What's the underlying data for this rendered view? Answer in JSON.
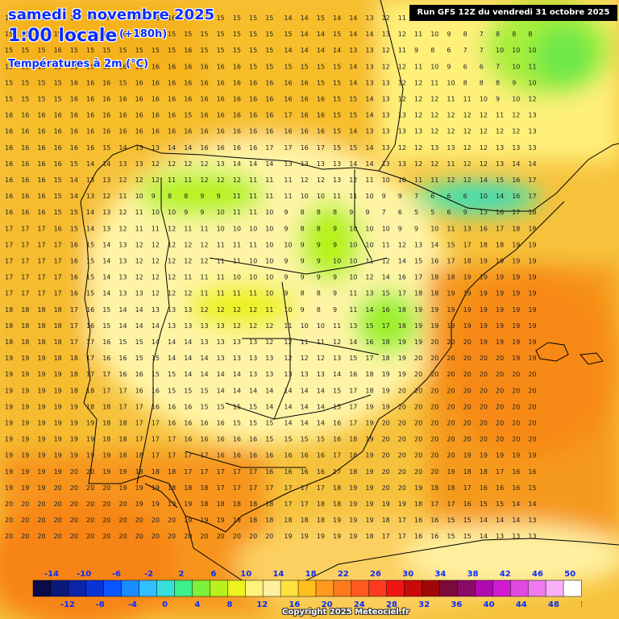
{
  "title": {
    "date": "samedi 8 novembre 2025",
    "time": "1:00 locale",
    "offset": "(+180h)",
    "parameter": "Températures à 2m (°C)"
  },
  "run_banner": "Run GFS 12Z du vendredi 31 octobre 2025",
  "copyright": "Copyright 2025 Meteociel.fr",
  "legend": {
    "top_labels": [
      "-14",
      "-10",
      "-6",
      "-2",
      "2",
      "6",
      "10",
      "14",
      "18",
      "22",
      "26",
      "30",
      "34",
      "38",
      "42",
      "46",
      "50"
    ],
    "bottom_labels": [
      "-12",
      "-8",
      "-4",
      "0",
      "4",
      "8",
      "12",
      "16",
      "20",
      "24",
      "28",
      "32",
      "36",
      "40",
      "44",
      "48",
      "52"
    ],
    "colors": [
      "#0b0b4a",
      "#0a1a7a",
      "#0b25a8",
      "#0a34d8",
      "#0a55ff",
      "#1a8cff",
      "#2fc0ff",
      "#37e0d8",
      "#3cf08a",
      "#7cf23a",
      "#b8f21e",
      "#eef21e",
      "#fff27a",
      "#fff0a0",
      "#ffe040",
      "#ffbf1f",
      "#ff9a1f",
      "#ff7a1f",
      "#ff5a1f",
      "#ff3a1f",
      "#f01414",
      "#c80a0a",
      "#a00808",
      "#7a0a3a",
      "#8a0a6a",
      "#b00ab0",
      "#d01ad0",
      "#e04ae0",
      "#f07af0",
      "#f8b0f8",
      "#ffffff"
    ]
  },
  "temperature_rows": [
    [
      "16",
      "16",
      "16",
      "16",
      "16",
      "16",
      "16",
      "15",
      "16",
      "16",
      "16",
      "16",
      "16",
      "15",
      "15",
      "15",
      "15",
      "14",
      "14",
      "15",
      "14",
      "14",
      "13",
      "12",
      "11",
      "11",
      "10",
      "9",
      "7",
      "7",
      "8",
      "8",
      "8"
    ],
    [
      "15",
      "15",
      "15",
      "15",
      "15",
      "15",
      "15",
      "16",
      "15",
      "15",
      "15",
      "15",
      "15",
      "15",
      "15",
      "15",
      "15",
      "15",
      "14",
      "14",
      "15",
      "14",
      "14",
      "13",
      "12",
      "11",
      "10",
      "9",
      "8",
      "7",
      "8",
      "8",
      "8"
    ],
    [
      "15",
      "15",
      "15",
      "16",
      "15",
      "15",
      "15",
      "15",
      "15",
      "15",
      "15",
      "16",
      "15",
      "15",
      "15",
      "15",
      "15",
      "14",
      "14",
      "14",
      "14",
      "13",
      "13",
      "12",
      "11",
      "9",
      "8",
      "6",
      "7",
      "7",
      "10",
      "10",
      "10"
    ],
    [
      "15",
      "15",
      "15",
      "15",
      "15",
      "15",
      "15",
      "16",
      "16",
      "16",
      "16",
      "16",
      "16",
      "16",
      "16",
      "15",
      "15",
      "15",
      "15",
      "15",
      "15",
      "14",
      "13",
      "12",
      "12",
      "11",
      "10",
      "9",
      "6",
      "6",
      "7",
      "10",
      "11"
    ],
    [
      "15",
      "15",
      "15",
      "15",
      "16",
      "16",
      "16",
      "15",
      "16",
      "16",
      "16",
      "16",
      "16",
      "16",
      "16",
      "16",
      "16",
      "16",
      "16",
      "15",
      "15",
      "14",
      "13",
      "13",
      "12",
      "12",
      "11",
      "10",
      "8",
      "8",
      "8",
      "9",
      "10"
    ],
    [
      "15",
      "15",
      "15",
      "15",
      "16",
      "16",
      "16",
      "16",
      "16",
      "16",
      "16",
      "16",
      "16",
      "16",
      "16",
      "16",
      "16",
      "16",
      "16",
      "16",
      "15",
      "15",
      "14",
      "13",
      "12",
      "12",
      "12",
      "11",
      "11",
      "10",
      "9",
      "10",
      "12"
    ],
    [
      "16",
      "16",
      "16",
      "16",
      "16",
      "16",
      "16",
      "16",
      "16",
      "16",
      "16",
      "15",
      "16",
      "16",
      "16",
      "16",
      "16",
      "17",
      "16",
      "16",
      "15",
      "15",
      "14",
      "13",
      "13",
      "12",
      "12",
      "12",
      "12",
      "12",
      "11",
      "12",
      "13"
    ],
    [
      "16",
      "16",
      "16",
      "16",
      "16",
      "16",
      "16",
      "16",
      "16",
      "16",
      "16",
      "16",
      "16",
      "16",
      "16",
      "16",
      "16",
      "16",
      "16",
      "16",
      "15",
      "14",
      "13",
      "13",
      "13",
      "13",
      "12",
      "12",
      "12",
      "12",
      "12",
      "12",
      "13"
    ],
    [
      "16",
      "16",
      "16",
      "16",
      "16",
      "16",
      "15",
      "14",
      "13",
      "13",
      "14",
      "14",
      "16",
      "16",
      "16",
      "16",
      "17",
      "17",
      "16",
      "17",
      "15",
      "15",
      "14",
      "13",
      "12",
      "12",
      "13",
      "13",
      "12",
      "12",
      "13",
      "13",
      "13"
    ],
    [
      "16",
      "16",
      "16",
      "16",
      "15",
      "14",
      "14",
      "13",
      "13",
      "12",
      "12",
      "12",
      "12",
      "13",
      "14",
      "14",
      "14",
      "13",
      "13",
      "13",
      "13",
      "14",
      "14",
      "13",
      "13",
      "12",
      "12",
      "11",
      "12",
      "12",
      "13",
      "14",
      "14"
    ],
    [
      "16",
      "16",
      "16",
      "15",
      "14",
      "13",
      "13",
      "12",
      "12",
      "12",
      "11",
      "11",
      "12",
      "12",
      "12",
      "11",
      "11",
      "11",
      "12",
      "12",
      "13",
      "12",
      "11",
      "10",
      "10",
      "11",
      "11",
      "12",
      "12",
      "14",
      "15",
      "16",
      "17"
    ],
    [
      "16",
      "16",
      "16",
      "15",
      "14",
      "13",
      "12",
      "11",
      "10",
      "9",
      "8",
      "8",
      "9",
      "9",
      "11",
      "11",
      "11",
      "11",
      "10",
      "10",
      "11",
      "11",
      "10",
      "9",
      "9",
      "7",
      "6",
      "6",
      "6",
      "10",
      "14",
      "16",
      "17"
    ],
    [
      "16",
      "16",
      "16",
      "15",
      "15",
      "14",
      "13",
      "12",
      "11",
      "10",
      "10",
      "9",
      "9",
      "10",
      "11",
      "11",
      "10",
      "9",
      "8",
      "8",
      "8",
      "9",
      "9",
      "7",
      "6",
      "5",
      "5",
      "6",
      "9",
      "13",
      "16",
      "17",
      "18"
    ],
    [
      "17",
      "17",
      "17",
      "16",
      "15",
      "14",
      "13",
      "12",
      "11",
      "11",
      "12",
      "11",
      "11",
      "10",
      "10",
      "10",
      "10",
      "9",
      "8",
      "8",
      "9",
      "10",
      "10",
      "10",
      "9",
      "9",
      "10",
      "11",
      "13",
      "16",
      "17",
      "18",
      "18"
    ],
    [
      "17",
      "17",
      "17",
      "17",
      "16",
      "15",
      "14",
      "13",
      "12",
      "12",
      "12",
      "12",
      "12",
      "11",
      "11",
      "11",
      "10",
      "10",
      "9",
      "9",
      "9",
      "10",
      "10",
      "11",
      "12",
      "13",
      "14",
      "15",
      "17",
      "18",
      "18",
      "19",
      "19"
    ],
    [
      "17",
      "17",
      "17",
      "17",
      "16",
      "15",
      "14",
      "13",
      "12",
      "12",
      "12",
      "12",
      "12",
      "11",
      "11",
      "10",
      "10",
      "9",
      "9",
      "9",
      "10",
      "10",
      "11",
      "12",
      "14",
      "15",
      "16",
      "17",
      "18",
      "19",
      "19",
      "19",
      "19"
    ],
    [
      "17",
      "17",
      "17",
      "17",
      "16",
      "15",
      "14",
      "13",
      "12",
      "12",
      "12",
      "11",
      "11",
      "11",
      "10",
      "10",
      "10",
      "9",
      "9",
      "9",
      "9",
      "10",
      "12",
      "14",
      "16",
      "17",
      "18",
      "18",
      "19",
      "19",
      "19",
      "19",
      "19"
    ],
    [
      "17",
      "17",
      "17",
      "17",
      "16",
      "15",
      "14",
      "13",
      "13",
      "12",
      "12",
      "12",
      "11",
      "11",
      "11",
      "11",
      "10",
      "9",
      "8",
      "8",
      "9",
      "11",
      "13",
      "15",
      "17",
      "18",
      "18",
      "19",
      "19",
      "19",
      "19",
      "19",
      "19"
    ],
    [
      "18",
      "18",
      "18",
      "18",
      "17",
      "16",
      "15",
      "14",
      "14",
      "13",
      "13",
      "13",
      "12",
      "12",
      "12",
      "12",
      "11",
      "10",
      "9",
      "8",
      "9",
      "11",
      "14",
      "16",
      "18",
      "19",
      "19",
      "19",
      "19",
      "19",
      "19",
      "19",
      "19"
    ],
    [
      "18",
      "18",
      "18",
      "18",
      "17",
      "16",
      "15",
      "14",
      "14",
      "14",
      "13",
      "13",
      "13",
      "13",
      "12",
      "12",
      "12",
      "11",
      "10",
      "10",
      "11",
      "13",
      "15",
      "17",
      "18",
      "19",
      "19",
      "19",
      "19",
      "19",
      "19",
      "19",
      "19"
    ],
    [
      "18",
      "18",
      "18",
      "18",
      "17",
      "17",
      "16",
      "15",
      "15",
      "14",
      "14",
      "14",
      "13",
      "13",
      "13",
      "13",
      "12",
      "12",
      "11",
      "11",
      "12",
      "14",
      "16",
      "18",
      "19",
      "19",
      "20",
      "20",
      "20",
      "19",
      "19",
      "19",
      "19"
    ],
    [
      "19",
      "19",
      "19",
      "18",
      "18",
      "17",
      "16",
      "16",
      "15",
      "15",
      "14",
      "14",
      "14",
      "13",
      "13",
      "13",
      "13",
      "12",
      "12",
      "12",
      "13",
      "15",
      "17",
      "18",
      "19",
      "20",
      "20",
      "20",
      "20",
      "20",
      "20",
      "19",
      "19"
    ],
    [
      "19",
      "19",
      "19",
      "19",
      "18",
      "17",
      "17",
      "16",
      "16",
      "15",
      "15",
      "14",
      "14",
      "14",
      "14",
      "13",
      "13",
      "13",
      "13",
      "13",
      "14",
      "16",
      "18",
      "19",
      "19",
      "20",
      "20",
      "20",
      "20",
      "20",
      "20",
      "20",
      "20"
    ],
    [
      "19",
      "19",
      "19",
      "19",
      "18",
      "18",
      "17",
      "17",
      "16",
      "16",
      "15",
      "15",
      "15",
      "14",
      "14",
      "14",
      "14",
      "14",
      "14",
      "14",
      "15",
      "17",
      "18",
      "19",
      "20",
      "20",
      "20",
      "20",
      "20",
      "20",
      "20",
      "20",
      "20"
    ],
    [
      "19",
      "19",
      "19",
      "19",
      "19",
      "18",
      "18",
      "17",
      "17",
      "16",
      "16",
      "16",
      "15",
      "15",
      "15",
      "15",
      "14",
      "14",
      "14",
      "14",
      "15",
      "17",
      "19",
      "19",
      "20",
      "20",
      "20",
      "20",
      "20",
      "20",
      "20",
      "20",
      "20"
    ],
    [
      "19",
      "19",
      "19",
      "19",
      "19",
      "19",
      "18",
      "18",
      "17",
      "17",
      "16",
      "16",
      "16",
      "16",
      "15",
      "15",
      "15",
      "14",
      "14",
      "14",
      "16",
      "17",
      "19",
      "20",
      "20",
      "20",
      "20",
      "20",
      "20",
      "20",
      "20",
      "20",
      "20"
    ],
    [
      "19",
      "19",
      "19",
      "19",
      "19",
      "19",
      "18",
      "18",
      "17",
      "17",
      "17",
      "16",
      "16",
      "16",
      "16",
      "16",
      "15",
      "15",
      "15",
      "15",
      "16",
      "18",
      "19",
      "20",
      "20",
      "20",
      "20",
      "20",
      "20",
      "20",
      "20",
      "20",
      "20"
    ],
    [
      "19",
      "19",
      "19",
      "19",
      "19",
      "19",
      "19",
      "18",
      "18",
      "17",
      "17",
      "17",
      "17",
      "16",
      "16",
      "16",
      "16",
      "16",
      "16",
      "16",
      "17",
      "18",
      "19",
      "20",
      "20",
      "20",
      "20",
      "20",
      "19",
      "19",
      "19",
      "19",
      "19"
    ],
    [
      "19",
      "19",
      "19",
      "19",
      "20",
      "20",
      "19",
      "19",
      "18",
      "18",
      "18",
      "17",
      "17",
      "17",
      "17",
      "17",
      "16",
      "16",
      "16",
      "16",
      "17",
      "18",
      "19",
      "20",
      "20",
      "20",
      "20",
      "19",
      "18",
      "18",
      "17",
      "16",
      "16"
    ],
    [
      "19",
      "19",
      "19",
      "20",
      "20",
      "20",
      "20",
      "19",
      "19",
      "19",
      "18",
      "18",
      "18",
      "17",
      "17",
      "17",
      "17",
      "17",
      "17",
      "17",
      "18",
      "19",
      "19",
      "20",
      "20",
      "19",
      "18",
      "18",
      "17",
      "16",
      "16",
      "16",
      "15"
    ],
    [
      "20",
      "20",
      "20",
      "20",
      "20",
      "20",
      "20",
      "20",
      "19",
      "19",
      "19",
      "19",
      "18",
      "18",
      "18",
      "18",
      "18",
      "17",
      "17",
      "18",
      "18",
      "19",
      "19",
      "19",
      "19",
      "18",
      "17",
      "17",
      "16",
      "15",
      "15",
      "14",
      "14"
    ],
    [
      "20",
      "20",
      "20",
      "20",
      "20",
      "20",
      "20",
      "20",
      "20",
      "20",
      "20",
      "19",
      "19",
      "19",
      "19",
      "18",
      "18",
      "18",
      "18",
      "18",
      "19",
      "19",
      "19",
      "18",
      "17",
      "16",
      "16",
      "15",
      "15",
      "14",
      "14",
      "14",
      "13"
    ],
    [
      "20",
      "20",
      "20",
      "20",
      "20",
      "20",
      "20",
      "20",
      "20",
      "20",
      "20",
      "20",
      "20",
      "20",
      "20",
      "20",
      "20",
      "19",
      "19",
      "19",
      "19",
      "19",
      "18",
      "17",
      "17",
      "16",
      "16",
      "15",
      "15",
      "14",
      "13",
      "13",
      "13"
    ]
  ]
}
